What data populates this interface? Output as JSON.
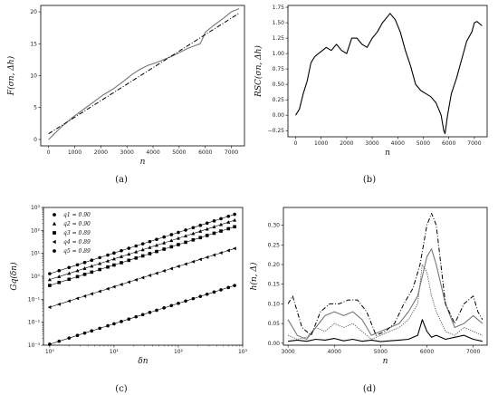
{
  "chart_data": [
    {
      "type": "line",
      "caption": "(a)",
      "xlabel": "n",
      "ylabel": "F(σn, Δh)",
      "xlim": [
        -300,
        7500
      ],
      "ylim": [
        -1,
        21
      ],
      "xticks": [
        0,
        1000,
        2000,
        3000,
        4000,
        5000,
        6000,
        7000
      ],
      "yticks": [
        0,
        5,
        10,
        15,
        20
      ],
      "series": [
        {
          "style": "solid-gray",
          "x": [
            0,
            200,
            500,
            900,
            1300,
            1700,
            2100,
            2500,
            2900,
            3200,
            3500,
            3800,
            4100,
            4400,
            4700,
            5000,
            5300,
            5600,
            5800,
            5900,
            6000,
            6300,
            6700,
            7000,
            7300
          ],
          "y": [
            0,
            0.8,
            2.0,
            3.4,
            4.6,
            5.8,
            7.0,
            8.0,
            9.2,
            10.2,
            11.0,
            11.6,
            12.0,
            12.5,
            13.0,
            13.6,
            14.2,
            14.7,
            15.0,
            15.8,
            16.8,
            17.8,
            19.0,
            20.0,
            20.5
          ]
        },
        {
          "style": "dashdot-black",
          "x": [
            0,
            7300
          ],
          "y": [
            0.9,
            19.8
          ]
        }
      ]
    },
    {
      "type": "line",
      "caption": "(b)",
      "xlabel": "n",
      "ylabel": "RSC(σn, Δh)",
      "xlim": [
        -300,
        7500
      ],
      "ylim": [
        -0.35,
        1.78
      ],
      "xticks": [
        0,
        1000,
        2000,
        3000,
        4000,
        5000,
        6000,
        7000
      ],
      "yticks": [
        -0.25,
        0.0,
        0.25,
        0.5,
        0.75,
        1.0,
        1.25,
        1.5,
        1.75
      ],
      "ytick_labels": [
        "−0.25",
        "0.00",
        "0.25",
        "0.50",
        "0.75",
        "1.00",
        "1.25",
        "1.50",
        "1.75"
      ],
      "series": [
        {
          "style": "solid-black",
          "x": [
            0,
            150,
            300,
            450,
            600,
            750,
            900,
            1050,
            1200,
            1400,
            1600,
            1800,
            2000,
            2200,
            2400,
            2600,
            2800,
            3000,
            3200,
            3400,
            3600,
            3700,
            3900,
            4100,
            4300,
            4500,
            4700,
            4900,
            5100,
            5300,
            5500,
            5700,
            5800,
            5850,
            5950,
            6100,
            6300,
            6500,
            6700,
            6900,
            7000,
            7100,
            7300
          ],
          "y": [
            0.0,
            0.1,
            0.35,
            0.55,
            0.85,
            0.95,
            1.0,
            1.05,
            1.1,
            1.05,
            1.15,
            1.05,
            1.0,
            1.25,
            1.25,
            1.15,
            1.1,
            1.25,
            1.35,
            1.5,
            1.6,
            1.65,
            1.55,
            1.35,
            1.05,
            0.8,
            0.5,
            0.4,
            0.35,
            0.3,
            0.2,
            0.0,
            -0.25,
            -0.3,
            0.0,
            0.35,
            0.6,
            0.9,
            1.2,
            1.35,
            1.5,
            1.52,
            1.45
          ]
        }
      ]
    },
    {
      "type": "scatter",
      "caption": "(c)",
      "xlabel": "δn",
      "ylabel": "Gq(δn)",
      "xscale": "log",
      "yscale": "log",
      "xlim": [
        0.8,
        1000
      ],
      "ylim": [
        0.001,
        1000
      ],
      "xticks": [
        1,
        10,
        100,
        1000
      ],
      "xtick_labels": [
        "10⁰",
        "10¹",
        "10²",
        "10³"
      ],
      "yticks": [
        0.001,
        0.01,
        0.1,
        1,
        10,
        100,
        1000
      ],
      "ytick_labels": [
        "10⁻³",
        "10⁻²",
        "10⁻¹",
        "10⁰",
        "10¹",
        "10²",
        "10³"
      ],
      "legend_position": "top-left",
      "series": [
        {
          "name": "q1 = 0.90",
          "marker": "circle",
          "a": 1.3,
          "slope": 0.9
        },
        {
          "name": "q2 = 0.90",
          "marker": "triangle-up",
          "a": 0.72,
          "slope": 0.9
        },
        {
          "name": "q3 = 0.89",
          "marker": "square",
          "a": 0.4,
          "slope": 0.89
        },
        {
          "name": "q4 = 0.89",
          "marker": "triangle-left",
          "a": 0.045,
          "slope": 0.89
        },
        {
          "name": "q5 = 0.89",
          "marker": "circle",
          "a": 0.0011,
          "slope": 0.89
        }
      ],
      "x_samples": [
        1,
        1.4,
        2,
        2.7,
        3.5,
        4.5,
        6,
        8,
        10,
        13,
        17,
        22,
        28,
        36,
        46,
        60,
        78,
        100,
        130,
        170,
        220,
        280,
        360,
        460,
        600,
        750
      ]
    },
    {
      "type": "line",
      "caption": "(d)",
      "xlabel": "n",
      "ylabel": "h(n, Δ)",
      "xlim": [
        2900,
        7300
      ],
      "ylim": [
        -0.005,
        0.345
      ],
      "xticks": [
        3000,
        4000,
        5000,
        6000,
        7000
      ],
      "yticks": [
        0.0,
        0.05,
        0.1,
        0.15,
        0.2,
        0.25,
        0.3
      ],
      "ytick_labels": [
        "0.00",
        "0.05",
        "0.10",
        "0.15",
        "0.20",
        "0.25",
        "0.30"
      ],
      "series": [
        {
          "style": "solid-black",
          "x": [
            3000,
            3200,
            3400,
            3600,
            3800,
            4000,
            4200,
            4400,
            4600,
            4800,
            5000,
            5200,
            5400,
            5600,
            5800,
            5900,
            6000,
            6100,
            6200,
            6400,
            6600,
            6800,
            7000,
            7200
          ],
          "y": [
            0.005,
            0.008,
            0.005,
            0.01,
            0.008,
            0.012,
            0.006,
            0.01,
            0.005,
            0.008,
            0.004,
            0.006,
            0.008,
            0.01,
            0.02,
            0.06,
            0.03,
            0.015,
            0.02,
            0.01,
            0.015,
            0.02,
            0.01,
            0.005
          ]
        },
        {
          "style": "dotted-gray",
          "x": [
            3000,
            3200,
            3400,
            3600,
            3800,
            4000,
            4200,
            4400,
            4600,
            4800,
            5000,
            5200,
            5400,
            5600,
            5800,
            5900,
            6000,
            6100,
            6200,
            6400,
            6600,
            6800,
            7000,
            7200
          ],
          "y": [
            0.02,
            0.01,
            0.015,
            0.04,
            0.03,
            0.05,
            0.04,
            0.05,
            0.03,
            0.01,
            0.02,
            0.03,
            0.04,
            0.06,
            0.1,
            0.2,
            0.18,
            0.12,
            0.08,
            0.03,
            0.02,
            0.04,
            0.03,
            0.02
          ]
        },
        {
          "style": "solid-gray",
          "x": [
            3000,
            3200,
            3400,
            3600,
            3800,
            4000,
            4200,
            4400,
            4600,
            4800,
            5000,
            5200,
            5400,
            5600,
            5800,
            5900,
            6000,
            6100,
            6200,
            6400,
            6600,
            6800,
            7000,
            7200
          ],
          "y": [
            0.06,
            0.02,
            0.01,
            0.04,
            0.07,
            0.08,
            0.07,
            0.08,
            0.06,
            0.02,
            0.03,
            0.04,
            0.05,
            0.08,
            0.12,
            0.17,
            0.22,
            0.24,
            0.2,
            0.1,
            0.04,
            0.05,
            0.07,
            0.05
          ]
        },
        {
          "style": "dashdot-black",
          "x": [
            3000,
            3100,
            3300,
            3500,
            3700,
            3900,
            4100,
            4300,
            4500,
            4700,
            4900,
            5100,
            5300,
            5500,
            5700,
            5850,
            6000,
            6100,
            6200,
            6300,
            6400,
            6600,
            6800,
            7000,
            7100,
            7200
          ],
          "y": [
            0.1,
            0.12,
            0.04,
            0.02,
            0.08,
            0.1,
            0.1,
            0.11,
            0.11,
            0.08,
            0.02,
            0.03,
            0.05,
            0.1,
            0.14,
            0.2,
            0.3,
            0.33,
            0.3,
            0.2,
            0.1,
            0.05,
            0.1,
            0.12,
            0.08,
            0.06
          ]
        }
      ]
    }
  ]
}
